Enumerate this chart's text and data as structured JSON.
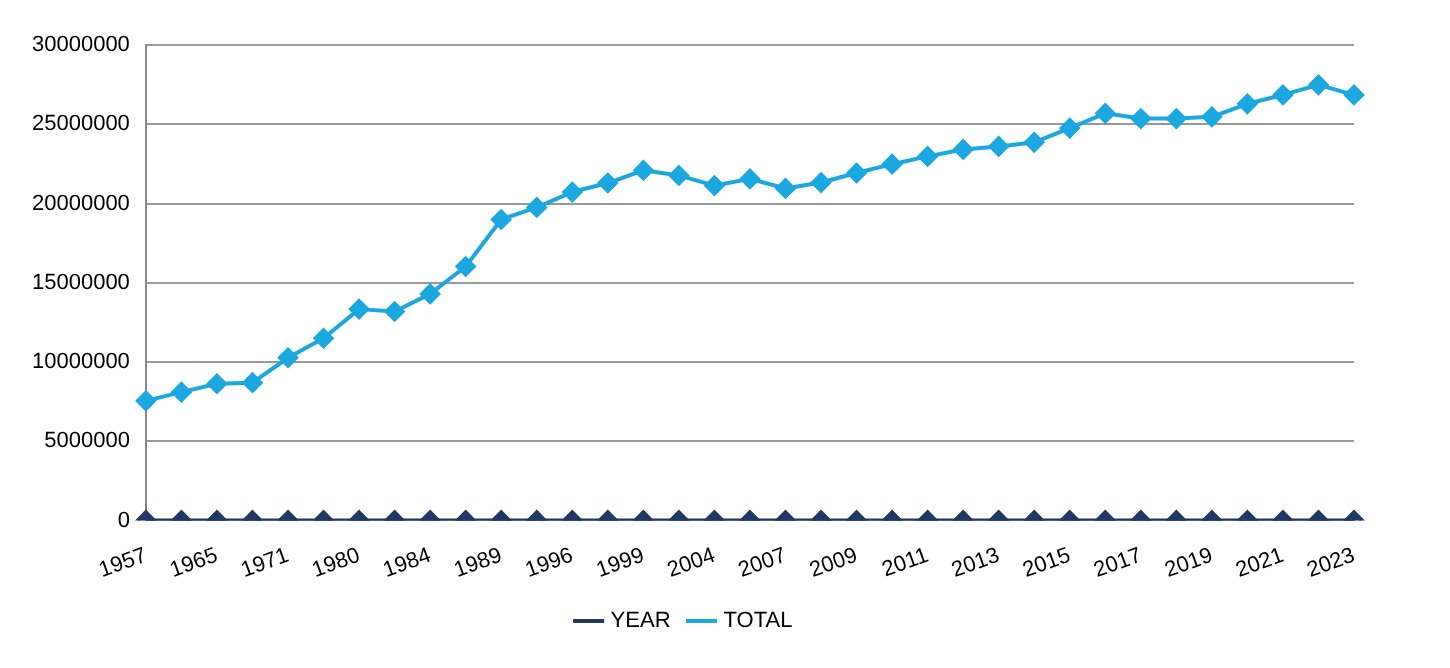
{
  "chart_data": {
    "type": "line",
    "categories": [
      "1957",
      null,
      "1965",
      null,
      "1971",
      null,
      "1980",
      null,
      "1984",
      null,
      "1989",
      null,
      "1996",
      null,
      "1999",
      null,
      "2004",
      null,
      "2007",
      null,
      "2009",
      null,
      "2011",
      null,
      "2013",
      null,
      "2015",
      null,
      "2017",
      null,
      "2019",
      null,
      "2021",
      null,
      "2023"
    ],
    "series": [
      {
        "name": "YEAR",
        "color": "#1f3864",
        "values": [
          0,
          0,
          0,
          0,
          0,
          0,
          0,
          0,
          0,
          0,
          0,
          0,
          0,
          0,
          0,
          0,
          0,
          0,
          0,
          0,
          0,
          0,
          0,
          0,
          0,
          0,
          0,
          0,
          0,
          0,
          0,
          0,
          0,
          0,
          0
        ]
      },
      {
        "name": "TOTAL",
        "color": "#1ba7e0",
        "values": [
          7550000,
          8100000,
          8630000,
          8700000,
          10270000,
          11500000,
          13340000,
          13190000,
          14300000,
          16030000,
          19000000,
          19760000,
          20730000,
          21300000,
          22100000,
          21780000,
          21140000,
          21560000,
          20960000,
          21330000,
          21930000,
          22490000,
          22980000,
          23420000,
          23610000,
          23870000,
          24770000,
          25700000,
          25370000,
          25370000,
          25480000,
          26300000,
          26860000,
          27500000,
          26860000
        ]
      }
    ],
    "ylim": [
      0,
      30000000
    ],
    "yticks": [
      0,
      5000000,
      10000000,
      15000000,
      20000000,
      25000000,
      30000000
    ],
    "grid": "y",
    "legend": "bottom",
    "marker": "diamond",
    "line_style": "solid"
  }
}
